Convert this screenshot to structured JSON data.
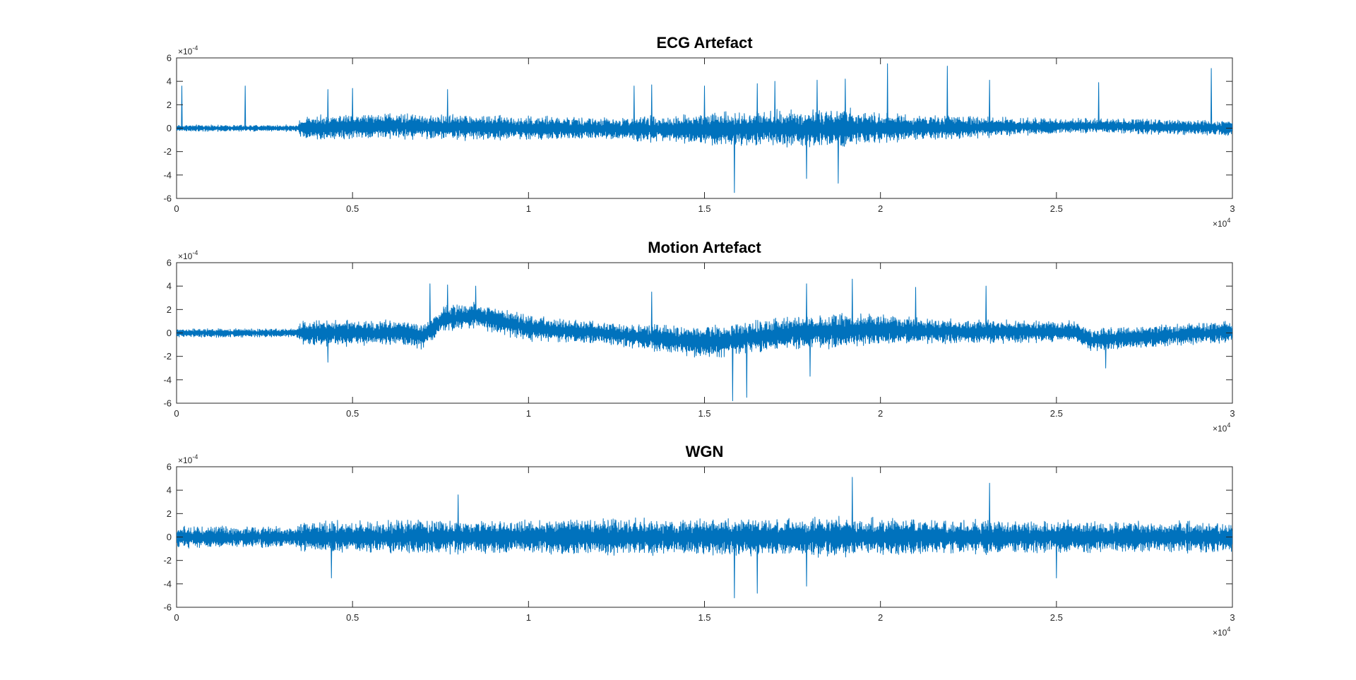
{
  "figure": {
    "line_color": "#0072BD",
    "axis_color": "#262626"
  },
  "chart_data": [
    {
      "type": "line",
      "title": "ECG Artefact",
      "xlabel": "",
      "ylabel": "",
      "xlim": [
        0,
        30000
      ],
      "ylim": [
        -0.0006,
        0.0006
      ],
      "x_ticks": [
        0,
        5000,
        10000,
        15000,
        20000,
        25000,
        30000
      ],
      "x_tick_labels": [
        "0",
        "0.5",
        "1",
        "1.5",
        "2",
        "2.5",
        "3"
      ],
      "y_ticks": [
        -0.0006,
        -0.0004,
        -0.0002,
        0,
        0.0002,
        0.0004,
        0.0006
      ],
      "y_tick_labels": [
        "-6",
        "-4",
        "-2",
        "0",
        "2",
        "4",
        "6"
      ],
      "x_exponent": {
        "base": "×10",
        "power": "4"
      },
      "y_exponent": {
        "base": "×10",
        "power": "-4"
      },
      "grid": false,
      "series": [
        {
          "name": "ECG Artefact",
          "n_points": 30000,
          "baseline_anchors": [
            [
              0,
              0
            ],
            [
              3500,
              0
            ],
            [
              6000,
              2e-05
            ],
            [
              10000,
              0
            ],
            [
              15000,
              -1e-05
            ],
            [
              17500,
              0
            ],
            [
              20000,
              0
            ],
            [
              23000,
              1e-05
            ],
            [
              26000,
              2e-05
            ],
            [
              30000,
              0
            ]
          ],
          "noise_envelope": [
            [
              0,
              3e-05
            ],
            [
              3400,
              3e-05
            ],
            [
              3600,
              0.00012
            ],
            [
              8000,
              0.00012
            ],
            [
              12000,
              0.0001
            ],
            [
              16000,
              0.00016
            ],
            [
              19000,
              0.00018
            ],
            [
              21000,
              0.00012
            ],
            [
              25000,
              7e-05
            ],
            [
              30000,
              7e-05
            ]
          ],
          "peaks": [
            [
              150,
              0.00036
            ],
            [
              1950,
              0.00036
            ],
            [
              4300,
              0.00033
            ],
            [
              5000,
              0.00034
            ],
            [
              7700,
              0.00033
            ],
            [
              13000,
              0.00036
            ],
            [
              13500,
              0.00037
            ],
            [
              15000,
              0.00036
            ],
            [
              15850,
              -0.00055
            ],
            [
              16500,
              0.00038
            ],
            [
              17000,
              0.0004
            ],
            [
              17900,
              -0.00043
            ],
            [
              18200,
              0.00041
            ],
            [
              18800,
              -0.00047
            ],
            [
              19000,
              0.00042
            ],
            [
              20200,
              0.00055
            ],
            [
              21900,
              0.00053
            ],
            [
              23100,
              0.00041
            ],
            [
              26200,
              0.00039
            ],
            [
              29400,
              0.00051
            ]
          ]
        }
      ]
    },
    {
      "type": "line",
      "title": "Motion Artefact",
      "xlabel": "",
      "ylabel": "",
      "xlim": [
        0,
        30000
      ],
      "ylim": [
        -0.0006,
        0.0006
      ],
      "x_ticks": [
        0,
        5000,
        10000,
        15000,
        20000,
        25000,
        30000
      ],
      "x_tick_labels": [
        "0",
        "0.5",
        "1",
        "1.5",
        "2",
        "2.5",
        "3"
      ],
      "y_ticks": [
        -0.0006,
        -0.0004,
        -0.0002,
        0,
        0.0002,
        0.0004,
        0.0006
      ],
      "y_tick_labels": [
        "-6",
        "-4",
        "-2",
        "0",
        "2",
        "4",
        "6"
      ],
      "x_exponent": {
        "base": "×10",
        "power": "4"
      },
      "y_exponent": {
        "base": "×10",
        "power": "-4"
      },
      "grid": false,
      "series": [
        {
          "name": "Motion Artefact",
          "n_points": 30000,
          "baseline_anchors": [
            [
              0,
              0
            ],
            [
              3500,
              0
            ],
            [
              6500,
              0
            ],
            [
              7000,
              -3e-05
            ],
            [
              7600,
              0.00012
            ],
            [
              8500,
              0.00015
            ],
            [
              10000,
              4e-05
            ],
            [
              12000,
              0
            ],
            [
              15000,
              -8e-05
            ],
            [
              17500,
              0
            ],
            [
              20000,
              3e-05
            ],
            [
              22000,
              1e-05
            ],
            [
              25500,
              1e-05
            ],
            [
              26000,
              -6e-05
            ],
            [
              27000,
              -4e-05
            ],
            [
              30000,
              1e-05
            ]
          ],
          "noise_envelope": [
            [
              0,
              4e-05
            ],
            [
              3400,
              4e-05
            ],
            [
              3600,
              0.00012
            ],
            [
              10000,
              0.00012
            ],
            [
              12000,
              0.0001
            ],
            [
              15500,
              0.00015
            ],
            [
              19000,
              0.00016
            ],
            [
              21000,
              0.00012
            ],
            [
              25000,
              0.0001
            ],
            [
              30000,
              0.0001
            ]
          ],
          "peaks": [
            [
              4300,
              -0.00025
            ],
            [
              7200,
              0.00042
            ],
            [
              7700,
              0.00041
            ],
            [
              8500,
              0.0004
            ],
            [
              13500,
              0.00035
            ],
            [
              15800,
              -0.00058
            ],
            [
              16200,
              -0.00055
            ],
            [
              17900,
              0.00042
            ],
            [
              18000,
              -0.00037
            ],
            [
              19200,
              0.00046
            ],
            [
              21000,
              0.00039
            ],
            [
              23000,
              0.0004
            ],
            [
              26400,
              -0.0003
            ]
          ]
        }
      ]
    },
    {
      "type": "line",
      "title": "WGN",
      "xlabel": "",
      "ylabel": "",
      "xlim": [
        0,
        30000
      ],
      "ylim": [
        -0.0006,
        0.0006
      ],
      "x_ticks": [
        0,
        5000,
        10000,
        15000,
        20000,
        25000,
        30000
      ],
      "x_tick_labels": [
        "0",
        "0.5",
        "1",
        "1.5",
        "2",
        "2.5",
        "3"
      ],
      "y_ticks": [
        -0.0006,
        -0.0004,
        -0.0002,
        0,
        0.0002,
        0.0004,
        0.0006
      ],
      "y_tick_labels": [
        "-6",
        "-4",
        "-2",
        "0",
        "2",
        "4",
        "6"
      ],
      "x_exponent": {
        "base": "×10",
        "power": "4"
      },
      "y_exponent": {
        "base": "×10",
        "power": "-4"
      },
      "grid": false,
      "series": [
        {
          "name": "WGN",
          "n_points": 30000,
          "baseline_anchors": [
            [
              0,
              0
            ],
            [
              30000,
              0
            ]
          ],
          "noise_envelope": [
            [
              0,
              0.0001
            ],
            [
              3400,
              0.0001
            ],
            [
              3600,
              0.00015
            ],
            [
              15000,
              0.00017
            ],
            [
              19000,
              0.00018
            ],
            [
              24000,
              0.00015
            ],
            [
              30000,
              0.00014
            ]
          ],
          "peaks": [
            [
              4400,
              -0.00035
            ],
            [
              8000,
              0.00036
            ],
            [
              15850,
              -0.00052
            ],
            [
              16500,
              -0.00048
            ],
            [
              17900,
              -0.00042
            ],
            [
              19200,
              0.00051
            ],
            [
              23100,
              0.00046
            ],
            [
              25000,
              -0.00035
            ]
          ]
        }
      ]
    }
  ]
}
